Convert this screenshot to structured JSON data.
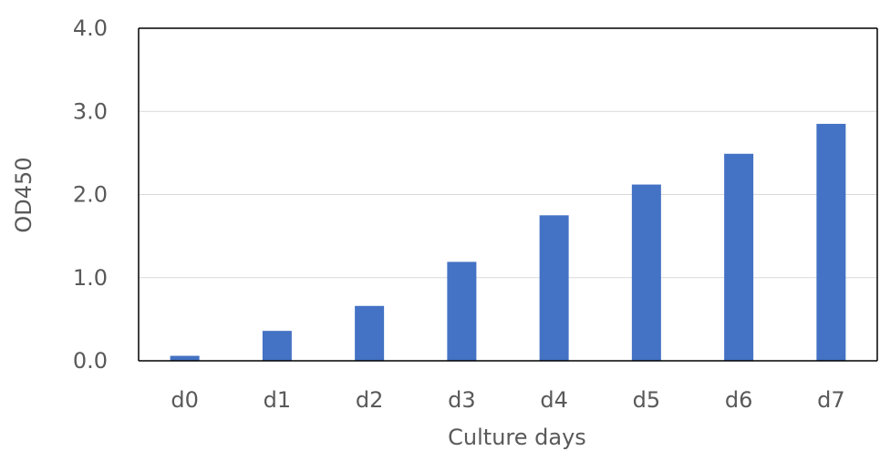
{
  "chart_data": {
    "type": "bar",
    "title": "",
    "xlabel": "Culture days",
    "ylabel": "OD450",
    "categories": [
      "d0",
      "d1",
      "d2",
      "d3",
      "d4",
      "d5",
      "d6",
      "d7"
    ],
    "series": [
      {
        "values": [
          0.06,
          0.36,
          0.66,
          1.19,
          1.75,
          2.12,
          2.49,
          2.85
        ],
        "color": "#4472C4"
      }
    ],
    "ylim": [
      0,
      4
    ],
    "yticks": [
      "0.0",
      "1.0",
      "2.0",
      "3.0",
      "4.0"
    ],
    "ytick_values": [
      0,
      1,
      2,
      3,
      4
    ],
    "grid": true,
    "legend": "none",
    "colors": {
      "bar": "#4472C4",
      "gridline": "#D9D9D9",
      "axis": "#000000",
      "text": "#595959"
    }
  }
}
